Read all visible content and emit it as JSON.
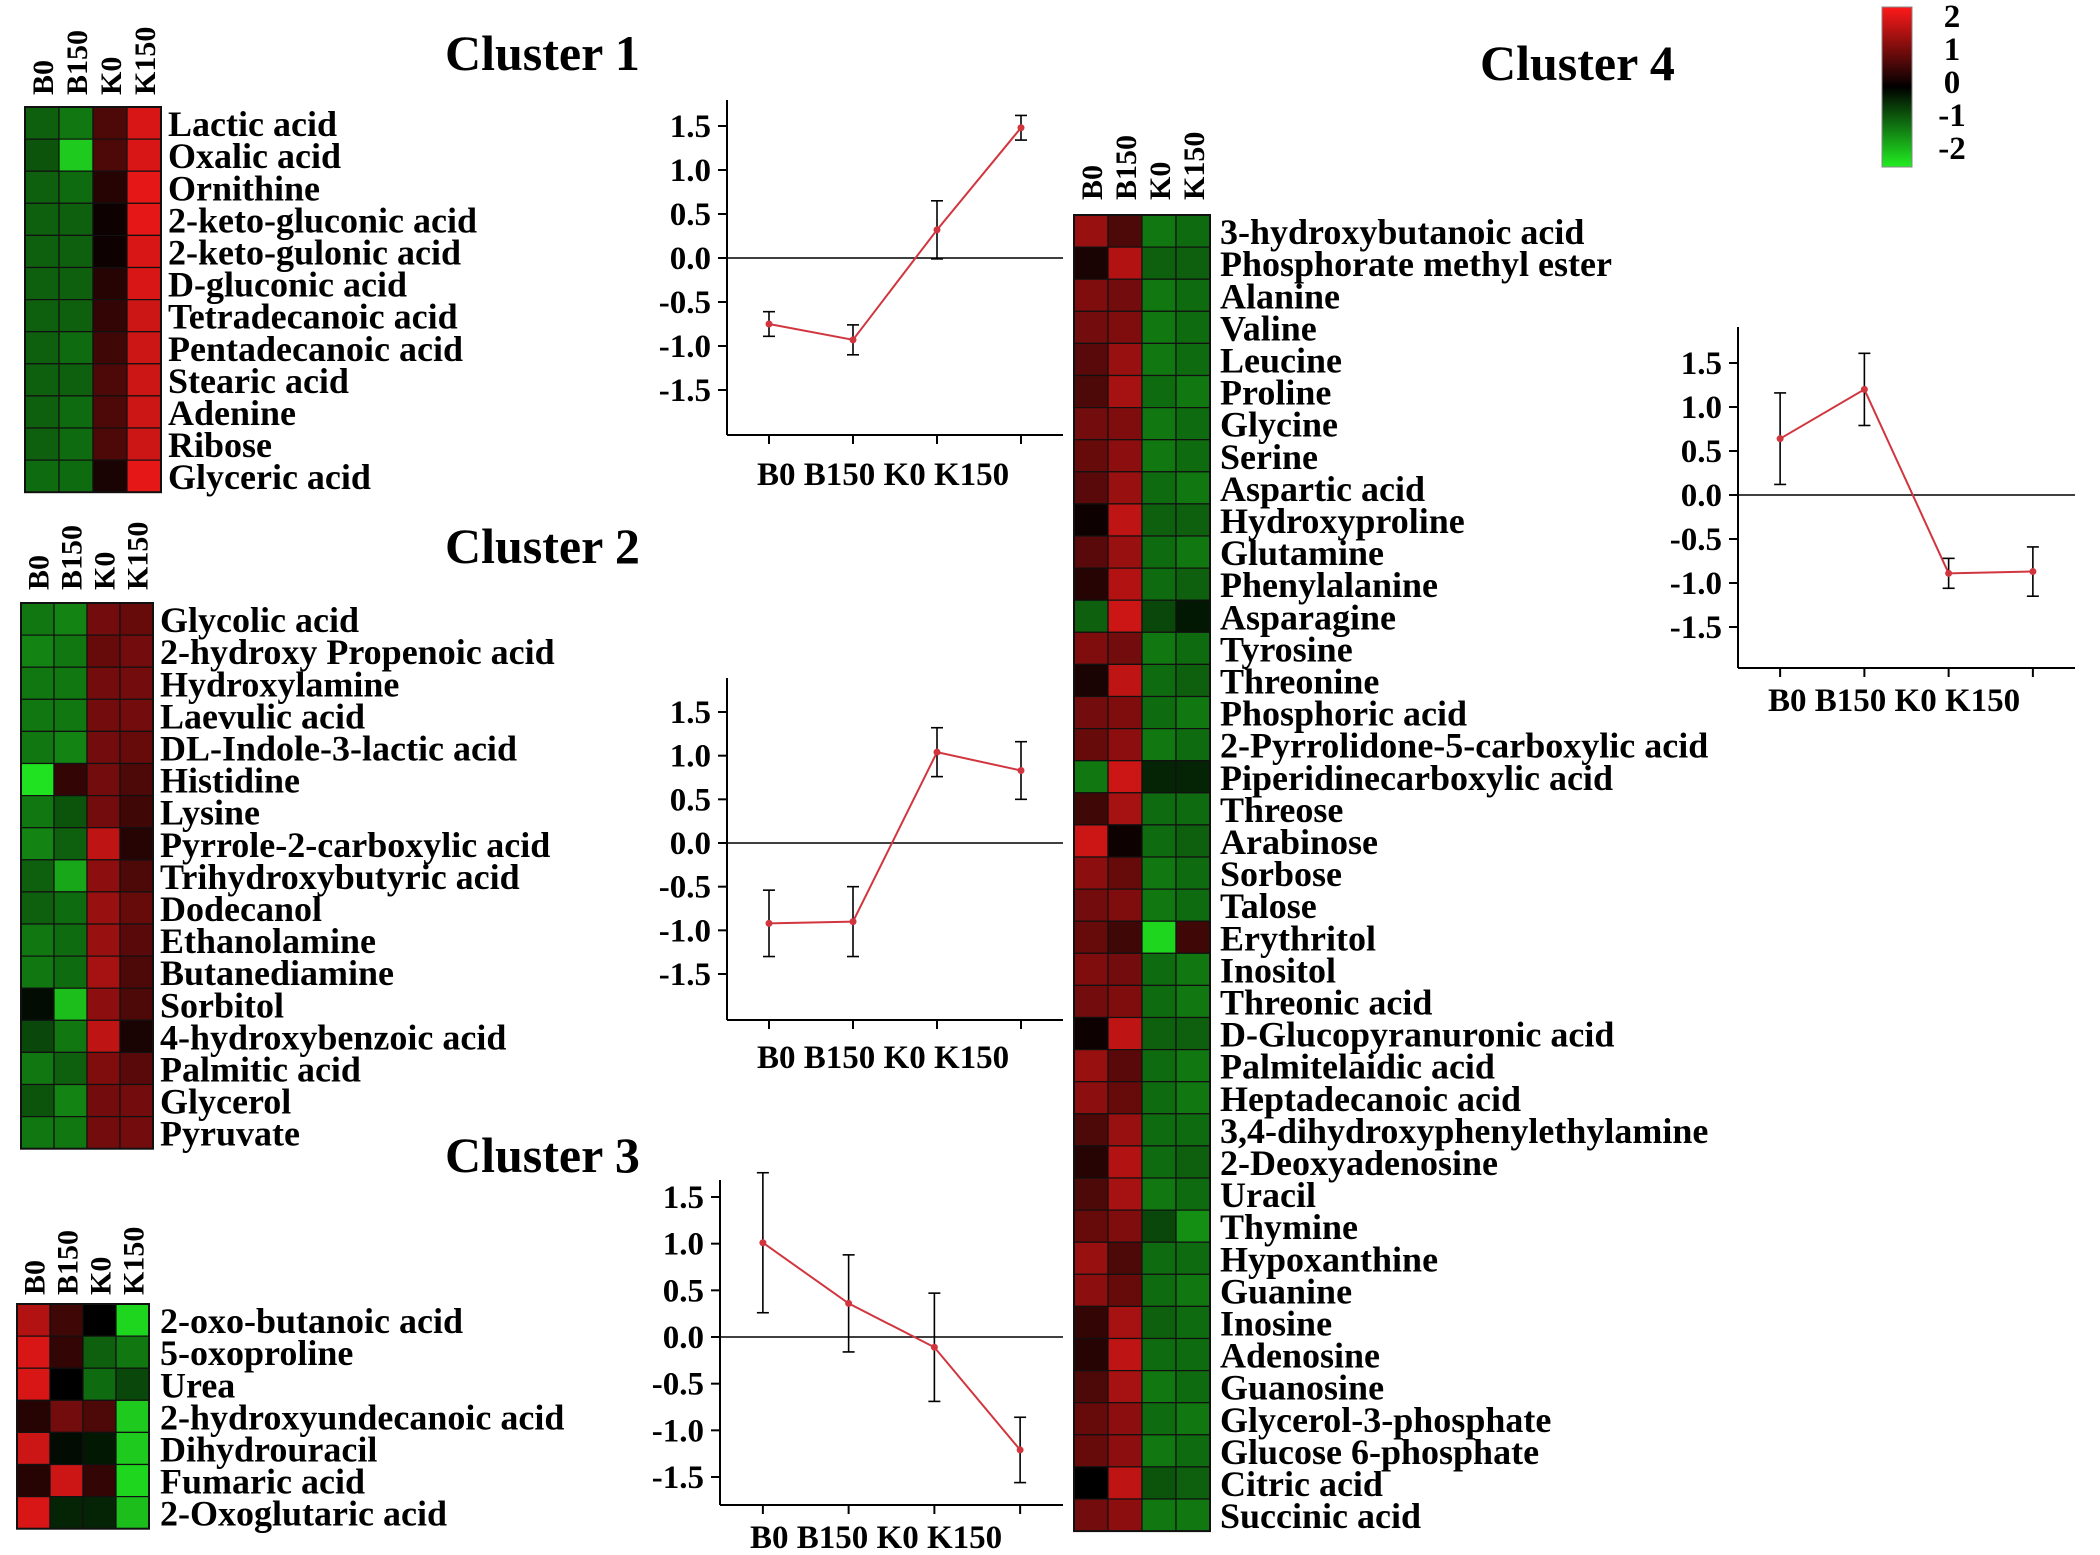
{
  "colors": {
    "high": "#ff1a1a",
    "mid": "#000000",
    "low": "#22ee22",
    "line": "#d1363f"
  },
  "legend": {
    "values": [
      "2",
      "1",
      "0",
      "-1",
      "-2"
    ]
  },
  "chart_data": [
    {
      "type": "heatmap",
      "title": "Cluster 1",
      "columns": [
        "B0",
        "B150",
        "K0",
        "K150"
      ],
      "rows": [
        "Lactic acid",
        "Oxalic acid",
        "Ornithine",
        "2-keto-gluconic acid",
        "2-keto-gulonic acid",
        "D-gluconic acid",
        "Tetradecanoic acid",
        "Pentadecanoic acid",
        "Stearic acid",
        "Adenine",
        "Ribose",
        "Glyceric acid"
      ],
      "values": [
        [
          -0.8,
          -1.0,
          0.6,
          1.7
        ],
        [
          -0.7,
          -1.7,
          0.6,
          1.7
        ],
        [
          -0.8,
          -0.9,
          0.3,
          1.8
        ],
        [
          -0.8,
          -0.8,
          0.1,
          1.8
        ],
        [
          -0.8,
          -0.8,
          0.1,
          1.7
        ],
        [
          -0.8,
          -0.8,
          0.3,
          1.7
        ],
        [
          -0.8,
          -0.8,
          0.4,
          1.6
        ],
        [
          -0.8,
          -0.9,
          0.5,
          1.6
        ],
        [
          -0.8,
          -0.8,
          0.6,
          1.6
        ],
        [
          -0.8,
          -0.9,
          0.6,
          1.6
        ],
        [
          -0.8,
          -0.9,
          0.6,
          1.6
        ],
        [
          -0.9,
          -0.9,
          0.2,
          1.8
        ]
      ]
    },
    {
      "type": "line",
      "categories": [
        "B0",
        "B150",
        "K0",
        "K150"
      ],
      "yticks": [
        "1.5",
        "1.0",
        "0.5",
        "0.0",
        "-0.5",
        "-1.0",
        "-1.5"
      ],
      "ylim": [
        -2.0,
        1.7
      ],
      "values": [
        -0.75,
        -0.93,
        0.32,
        1.48
      ],
      "errors": [
        0.14,
        0.17,
        0.33,
        0.14
      ]
    },
    {
      "type": "heatmap",
      "title": "Cluster 2",
      "columns": [
        "B0",
        "B150",
        "K0",
        "K150"
      ],
      "rows": [
        "Glycolic acid",
        "2-hydroxy Propenoic acid",
        "Hydroxylamine",
        "Laevulic acid",
        "DL-Indole-3-lactic acid",
        "Histidine",
        "Lysine",
        "Pyrrole-2-carboxylic acid",
        "Trihydroxybutyric acid",
        "Dodecanol",
        "Ethanolamine",
        "Butanediamine",
        "Sorbitol",
        "4-hydroxybenzoic acid",
        "Palmitic acid",
        "Glycerol",
        "Pyruvate"
      ],
      "values": [
        [
          -1.0,
          -1.1,
          0.9,
          0.8
        ],
        [
          -1.1,
          -1.0,
          0.8,
          0.9
        ],
        [
          -1.0,
          -1.0,
          0.9,
          0.9
        ],
        [
          -1.0,
          -1.0,
          0.9,
          0.9
        ],
        [
          -1.0,
          -1.1,
          0.9,
          0.8
        ],
        [
          -1.9,
          0.4,
          0.9,
          0.6
        ],
        [
          -1.0,
          -0.7,
          0.9,
          0.5
        ],
        [
          -1.1,
          -0.8,
          1.5,
          0.3
        ],
        [
          -0.8,
          -1.4,
          1.1,
          0.6
        ],
        [
          -0.8,
          -0.9,
          1.2,
          0.8
        ],
        [
          -1.0,
          -0.9,
          1.2,
          0.7
        ],
        [
          -1.0,
          -0.9,
          1.3,
          0.6
        ],
        [
          -0.1,
          -1.6,
          1.1,
          0.6
        ],
        [
          -0.6,
          -1.0,
          1.5,
          0.2
        ],
        [
          -1.0,
          -0.8,
          1.0,
          0.7
        ],
        [
          -0.7,
          -1.1,
          0.9,
          0.9
        ],
        [
          -1.0,
          -1.0,
          0.9,
          0.9
        ]
      ]
    },
    {
      "type": "line",
      "categories": [
        "B0",
        "B150",
        "K0",
        "K150"
      ],
      "yticks": [
        "1.5",
        "1.0",
        "0.5",
        "0.0",
        "-0.5",
        "-1.0",
        "-1.5"
      ],
      "ylim": [
        -2.0,
        1.85
      ],
      "values": [
        -0.92,
        -0.9,
        1.04,
        0.83
      ],
      "errors": [
        0.38,
        0.4,
        0.28,
        0.33
      ]
    },
    {
      "type": "heatmap",
      "title": "Cluster 3",
      "columns": [
        "B0",
        "B150",
        "K0",
        "K150"
      ],
      "rows": [
        "2-oxo-butanoic acid",
        "5-oxoproline",
        "Urea",
        "2-hydroxyundecanoic acid",
        "Dihydrouracil",
        "Fumaric acid",
        "2-Oxoglutaric acid"
      ],
      "values": [
        [
          1.4,
          0.5,
          0.0,
          -1.8
        ],
        [
          1.7,
          0.4,
          -0.8,
          -1.0
        ],
        [
          1.7,
          0.0,
          -0.9,
          -0.6
        ],
        [
          0.3,
          0.9,
          0.6,
          -1.7
        ],
        [
          1.6,
          -0.1,
          -0.2,
          -1.7
        ],
        [
          0.3,
          1.6,
          0.4,
          -1.8
        ],
        [
          1.7,
          -0.3,
          -0.3,
          -1.6
        ]
      ]
    },
    {
      "type": "line",
      "categories": [
        "B0",
        "B150",
        "K0",
        "K150"
      ],
      "yticks": [
        "1.5",
        "1.0",
        "0.5",
        "0.0",
        "-0.5",
        "-1.0",
        "-1.5"
      ],
      "ylim": [
        -2.0,
        1.85
      ],
      "values": [
        1.01,
        0.36,
        -0.11,
        -1.21
      ],
      "errors": [
        0.75,
        0.52,
        0.58,
        0.35
      ]
    },
    {
      "type": "heatmap",
      "title": "Cluster 4",
      "columns": [
        "B0",
        "B150",
        "K0",
        "K150"
      ],
      "rows": [
        "3-hydroxybutanoic acid",
        "Phosphorate methyl ester",
        "Alanine",
        "Valine",
        "Leucine",
        "Proline",
        "Glycine",
        "Serine",
        "Aspartic acid",
        "Hydroxyproline",
        "Glutamine",
        "Phenylalanine",
        "Asparagine",
        "Tyrosine",
        "Threonine",
        "Phosphoric acid",
        "2-Pyrrolidone-5-carboxylic acid",
        "Piperidinecarboxylic acid",
        "Threose",
        "Arabinose",
        "Sorbose",
        "Talose",
        "Erythritol",
        "Inositol",
        "Threonic acid",
        "D-Glucopyranuronic acid",
        "Palmitelaidic acid",
        "Heptadecanoic acid",
        "3,4-dihydroxyphenylethylamine",
        "2-Deoxyadenosine",
        "Uracil",
        "Thymine",
        "Hypoxanthine",
        "Guanine",
        "Inosine",
        "Adenosine",
        "Guanosine",
        "Glycerol-3-phosphate",
        "Glucose 6-phosphate",
        "Citric acid",
        "Succinic acid"
      ],
      "values": [
        [
          1.2,
          0.6,
          -1.0,
          -0.9
        ],
        [
          0.2,
          1.4,
          -0.8,
          -0.8
        ],
        [
          1.0,
          0.9,
          -1.0,
          -0.9
        ],
        [
          0.9,
          1.0,
          -1.0,
          -0.9
        ],
        [
          0.7,
          1.2,
          -1.0,
          -0.9
        ],
        [
          0.6,
          1.3,
          -0.9,
          -1.0
        ],
        [
          0.9,
          1.0,
          -1.0,
          -0.9
        ],
        [
          0.8,
          1.1,
          -1.0,
          -0.9
        ],
        [
          0.7,
          1.2,
          -0.9,
          -1.0
        ],
        [
          0.1,
          1.5,
          -0.8,
          -0.8
        ],
        [
          0.7,
          1.2,
          -0.9,
          -1.0
        ],
        [
          0.3,
          1.4,
          -0.9,
          -0.8
        ],
        [
          -0.8,
          1.6,
          -0.6,
          -0.2
        ],
        [
          1.0,
          0.9,
          -1.0,
          -0.9
        ],
        [
          0.2,
          1.5,
          -0.9,
          -0.8
        ],
        [
          0.9,
          1.0,
          -0.9,
          -1.0
        ],
        [
          0.8,
          1.1,
          -1.0,
          -0.9
        ],
        [
          -1.0,
          1.6,
          -0.3,
          -0.3
        ],
        [
          0.5,
          1.3,
          -0.9,
          -0.9
        ],
        [
          1.6,
          0.1,
          -0.9,
          -0.8
        ],
        [
          1.1,
          0.8,
          -1.0,
          -0.9
        ],
        [
          0.9,
          1.0,
          -1.0,
          -0.9
        ],
        [
          0.8,
          0.5,
          -1.8,
          0.5
        ],
        [
          1.0,
          0.9,
          -0.9,
          -1.0
        ],
        [
          0.9,
          1.0,
          -0.9,
          -1.0
        ],
        [
          0.1,
          1.5,
          -0.8,
          -0.8
        ],
        [
          1.2,
          0.7,
          -0.9,
          -1.0
        ],
        [
          1.1,
          0.8,
          -0.9,
          -1.0
        ],
        [
          0.6,
          1.2,
          -0.9,
          -0.9
        ],
        [
          0.3,
          1.4,
          -0.9,
          -0.8
        ],
        [
          0.6,
          1.3,
          -1.0,
          -0.9
        ],
        [
          0.8,
          1.0,
          -0.6,
          -1.2
        ],
        [
          1.2,
          0.6,
          -0.9,
          -0.9
        ],
        [
          1.1,
          0.8,
          -0.9,
          -1.0
        ],
        [
          0.4,
          1.3,
          -0.8,
          -0.9
        ],
        [
          0.3,
          1.5,
          -0.9,
          -0.9
        ],
        [
          0.6,
          1.3,
          -1.0,
          -0.9
        ],
        [
          0.8,
          1.1,
          -0.9,
          -1.0
        ],
        [
          0.8,
          1.1,
          -1.0,
          -0.9
        ],
        [
          0.0,
          1.5,
          -0.7,
          -0.8
        ],
        [
          0.9,
          1.1,
          -1.0,
          -1.0
        ]
      ]
    },
    {
      "type": "line",
      "categories": [
        "B0",
        "B150",
        "K0",
        "K150"
      ],
      "yticks": [
        "1.5",
        "1.0",
        "0.5",
        "0.0",
        "-0.5",
        "-1.0",
        "-1.5"
      ],
      "ylim": [
        -2.0,
        1.85
      ],
      "values": [
        0.64,
        1.2,
        -0.89,
        -0.87
      ],
      "errors": [
        0.52,
        0.41,
        0.17,
        0.28
      ]
    }
  ]
}
